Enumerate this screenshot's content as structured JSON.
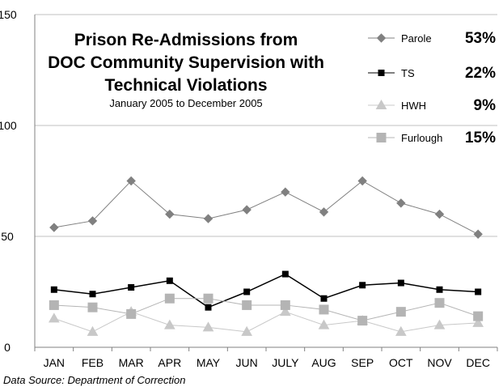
{
  "chart_data": {
    "type": "line",
    "title_lines": [
      "Prison Re-Admissions from",
      "DOC Community Supervision with",
      "Technical Violations"
    ],
    "subtitle": "January 2005 to December 2005",
    "source": "Data Source: Department of Correction",
    "categories": [
      "JAN",
      "FEB",
      "MAR",
      "APR",
      "MAY",
      "JUN",
      "JULY",
      "AUG",
      "SEP",
      "OCT",
      "NOV",
      "DEC"
    ],
    "ylim": [
      0,
      150
    ],
    "yticks": [
      0,
      50,
      100,
      150
    ],
    "grid": "horizontal",
    "legend_position": "top-right",
    "series": [
      {
        "name": "Parole",
        "percent": "53%",
        "color": "#808080",
        "marker": "diamond",
        "values": [
          54,
          57,
          75,
          60,
          58,
          62,
          70,
          61,
          75,
          65,
          60,
          51
        ]
      },
      {
        "name": "TS",
        "percent": "22%",
        "color": "#000000",
        "marker": "square",
        "values": [
          26,
          24,
          27,
          30,
          18,
          25,
          33,
          22,
          28,
          29,
          26,
          25
        ]
      },
      {
        "name": "HWH",
        "percent": "9%",
        "color": "#c8c8c8",
        "marker": "triangle",
        "values": [
          13,
          7,
          16,
          10,
          9,
          7,
          16,
          10,
          12,
          7,
          10,
          11
        ]
      },
      {
        "name": "Furlough",
        "percent": "15%",
        "color": "#b4b4b4",
        "marker": "square",
        "values": [
          19,
          18,
          15,
          22,
          22,
          19,
          19,
          17,
          12,
          16,
          20,
          14
        ]
      }
    ]
  }
}
